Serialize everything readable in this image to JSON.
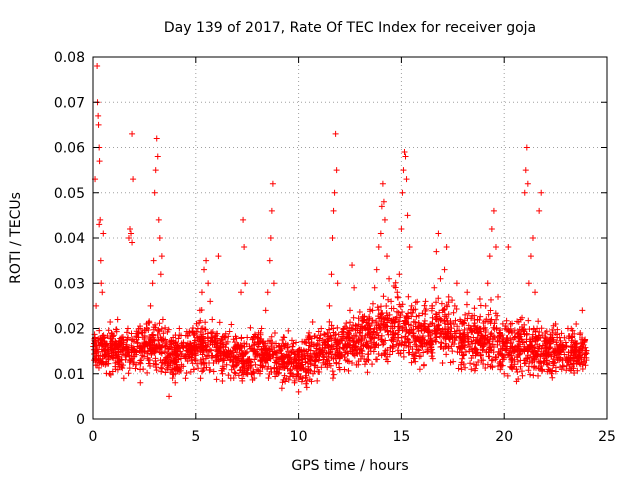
{
  "chart_data": {
    "type": "scatter",
    "title": "Day 139 of 2017, Rate Of TEC Index for receiver goja",
    "xlabel": "GPS time / hours",
    "ylabel": "ROTI / TECUs",
    "xlim": [
      0,
      25
    ],
    "ylim": [
      0,
      0.08
    ],
    "xticks": [
      0,
      5,
      10,
      15,
      20,
      25
    ],
    "yticks": [
      0,
      0.01,
      0.02,
      0.03,
      0.04,
      0.05,
      0.06,
      0.07,
      0.08
    ],
    "xtick_labels": [
      "0",
      "5",
      "10",
      "15",
      "20",
      "25"
    ],
    "ytick_labels": [
      "0",
      "0.01",
      "0.02",
      "0.03",
      "0.04",
      "0.05",
      "0.06",
      "0.07",
      "0.08"
    ],
    "grid": true,
    "marker": "plus",
    "color": "#ff0000",
    "series": [
      {
        "points": [
          [
            0.05,
            0.013
          ],
          [
            0.1,
            0.018
          ],
          [
            0.15,
            0.025
          ],
          [
            0.2,
            0.078
          ],
          [
            0.22,
            0.07
          ],
          [
            0.25,
            0.067
          ],
          [
            0.27,
            0.065
          ],
          [
            0.3,
            0.06
          ],
          [
            0.32,
            0.057
          ],
          [
            0.35,
            0.044
          ],
          [
            0.38,
            0.035
          ],
          [
            0.4,
            0.03
          ],
          [
            0.45,
            0.028
          ],
          [
            0.5,
            0.016
          ],
          [
            0.6,
            0.012
          ],
          [
            0.7,
            0.015
          ],
          [
            0.8,
            0.01
          ],
          [
            0.9,
            0.019
          ],
          [
            0.1,
            0.053
          ],
          [
            0.3,
            0.043
          ],
          [
            0.5,
            0.041
          ],
          [
            1.0,
            0.014
          ],
          [
            1.1,
            0.011
          ],
          [
            1.2,
            0.022
          ],
          [
            1.3,
            0.013
          ],
          [
            1.4,
            0.018
          ],
          [
            1.5,
            0.009
          ],
          [
            1.6,
            0.016
          ],
          [
            1.7,
            0.02
          ],
          [
            1.75,
            0.04
          ],
          [
            1.8,
            0.042
          ],
          [
            1.85,
            0.041
          ],
          [
            1.9,
            0.039
          ],
          [
            1.9,
            0.063
          ],
          [
            1.95,
            0.053
          ],
          [
            2.0,
            0.015
          ],
          [
            2.1,
            0.012
          ],
          [
            2.2,
            0.019
          ],
          [
            2.3,
            0.008
          ],
          [
            2.4,
            0.014
          ],
          [
            2.5,
            0.017
          ],
          [
            2.6,
            0.021
          ],
          [
            2.7,
            0.013
          ],
          [
            2.8,
            0.025
          ],
          [
            2.9,
            0.03
          ],
          [
            2.95,
            0.035
          ],
          [
            3.0,
            0.05
          ],
          [
            3.05,
            0.055
          ],
          [
            3.1,
            0.062
          ],
          [
            3.15,
            0.058
          ],
          [
            3.2,
            0.044
          ],
          [
            3.25,
            0.04
          ],
          [
            3.3,
            0.032
          ],
          [
            3.35,
            0.036
          ],
          [
            3.4,
            0.022
          ],
          [
            3.5,
            0.015
          ],
          [
            3.6,
            0.011
          ],
          [
            3.7,
            0.005
          ],
          [
            3.8,
            0.013
          ],
          [
            3.9,
            0.018
          ],
          [
            4.0,
            0.01
          ],
          [
            4.1,
            0.014
          ],
          [
            4.2,
            0.02
          ],
          [
            4.3,
            0.012
          ],
          [
            4.4,
            0.016
          ],
          [
            4.5,
            0.009
          ],
          [
            4.6,
            0.015
          ],
          [
            4.7,
            0.019
          ],
          [
            4.8,
            0.013
          ],
          [
            4.9,
            0.011
          ],
          [
            5.0,
            0.016
          ],
          [
            5.1,
            0.02
          ],
          [
            5.2,
            0.024
          ],
          [
            5.3,
            0.028
          ],
          [
            5.4,
            0.033
          ],
          [
            5.5,
            0.035
          ],
          [
            5.6,
            0.03
          ],
          [
            5.7,
            0.026
          ],
          [
            5.8,
            0.022
          ],
          [
            5.9,
            0.017
          ],
          [
            6.0,
            0.013
          ],
          [
            6.1,
            0.036
          ],
          [
            6.2,
            0.014
          ],
          [
            6.3,
            0.01
          ],
          [
            6.4,
            0.018
          ],
          [
            6.5,
            0.012
          ],
          [
            6.6,
            0.015
          ],
          [
            6.7,
            0.009
          ],
          [
            6.8,
            0.013
          ],
          [
            6.9,
            0.017
          ],
          [
            7.0,
            0.012
          ],
          [
            7.1,
            0.016
          ],
          [
            7.2,
            0.028
          ],
          [
            7.3,
            0.044
          ],
          [
            7.35,
            0.038
          ],
          [
            7.4,
            0.03
          ],
          [
            7.5,
            0.018
          ],
          [
            7.6,
            0.013
          ],
          [
            7.7,
            0.01
          ],
          [
            7.8,
            0.015
          ],
          [
            7.9,
            0.012
          ],
          [
            8.0,
            0.018
          ],
          [
            8.1,
            0.014
          ],
          [
            8.2,
            0.02
          ],
          [
            8.3,
            0.016
          ],
          [
            8.4,
            0.024
          ],
          [
            8.5,
            0.028
          ],
          [
            8.6,
            0.035
          ],
          [
            8.65,
            0.04
          ],
          [
            8.7,
            0.046
          ],
          [
            8.75,
            0.052
          ],
          [
            8.8,
            0.03
          ],
          [
            8.9,
            0.013
          ],
          [
            9.0,
            0.01
          ],
          [
            9.1,
            0.015
          ],
          [
            9.2,
            0.012
          ],
          [
            9.3,
            0.018
          ],
          [
            9.4,
            0.009
          ],
          [
            9.5,
            0.014
          ],
          [
            9.6,
            0.011
          ],
          [
            9.7,
            0.016
          ],
          [
            9.8,
            0.008
          ],
          [
            9.9,
            0.013
          ],
          [
            10.0,
            0.006
          ],
          [
            10.1,
            0.012
          ],
          [
            10.2,
            0.009
          ],
          [
            10.3,
            0.014
          ],
          [
            10.4,
            0.007
          ],
          [
            10.5,
            0.011
          ],
          [
            10.6,
            0.016
          ],
          [
            10.7,
            0.01
          ],
          [
            10.8,
            0.013
          ],
          [
            10.9,
            0.018
          ],
          [
            11.0,
            0.015
          ],
          [
            11.1,
            0.02
          ],
          [
            11.2,
            0.017
          ],
          [
            11.3,
            0.012
          ],
          [
            11.4,
            0.019
          ],
          [
            11.5,
            0.025
          ],
          [
            11.6,
            0.032
          ],
          [
            11.65,
            0.04
          ],
          [
            11.7,
            0.046
          ],
          [
            11.75,
            0.05
          ],
          [
            11.8,
            0.063
          ],
          [
            11.85,
            0.055
          ],
          [
            11.9,
            0.03
          ],
          [
            12.0,
            0.017
          ],
          [
            12.1,
            0.014
          ],
          [
            12.2,
            0.02
          ],
          [
            12.3,
            0.013
          ],
          [
            12.4,
            0.018
          ],
          [
            12.5,
            0.024
          ],
          [
            12.6,
            0.034
          ],
          [
            12.7,
            0.029
          ],
          [
            12.8,
            0.016
          ],
          [
            12.9,
            0.012
          ],
          [
            13.0,
            0.019
          ],
          [
            13.1,
            0.015
          ],
          [
            13.2,
            0.022
          ],
          [
            13.3,
            0.017
          ],
          [
            13.4,
            0.013
          ],
          [
            13.5,
            0.02
          ],
          [
            13.6,
            0.024
          ],
          [
            13.7,
            0.029
          ],
          [
            13.8,
            0.033
          ],
          [
            13.9,
            0.038
          ],
          [
            14.0,
            0.041
          ],
          [
            14.05,
            0.047
          ],
          [
            14.1,
            0.052
          ],
          [
            14.15,
            0.048
          ],
          [
            14.2,
            0.044
          ],
          [
            14.3,
            0.036
          ],
          [
            14.4,
            0.031
          ],
          [
            14.5,
            0.026
          ],
          [
            14.6,
            0.022
          ],
          [
            14.7,
            0.019
          ],
          [
            14.8,
            0.028
          ],
          [
            14.9,
            0.032
          ],
          [
            15.0,
            0.042
          ],
          [
            15.05,
            0.05
          ],
          [
            15.1,
            0.055
          ],
          [
            15.15,
            0.059
          ],
          [
            15.2,
            0.058
          ],
          [
            15.25,
            0.053
          ],
          [
            15.3,
            0.045
          ],
          [
            15.4,
            0.038
          ],
          [
            15.5,
            0.025
          ],
          [
            15.6,
            0.019
          ],
          [
            15.7,
            0.014
          ],
          [
            15.8,
            0.018
          ],
          [
            15.9,
            0.011
          ],
          [
            16.0,
            0.016
          ],
          [
            16.1,
            0.012
          ],
          [
            16.2,
            0.02
          ],
          [
            16.3,
            0.015
          ],
          [
            16.4,
            0.021
          ],
          [
            16.5,
            0.025
          ],
          [
            16.6,
            0.029
          ],
          [
            16.7,
            0.037
          ],
          [
            16.8,
            0.041
          ],
          [
            16.9,
            0.031
          ],
          [
            17.0,
            0.024
          ],
          [
            17.1,
            0.033
          ],
          [
            17.2,
            0.038
          ],
          [
            17.3,
            0.027
          ],
          [
            17.4,
            0.021
          ],
          [
            17.5,
            0.018
          ],
          [
            17.6,
            0.025
          ],
          [
            17.7,
            0.03
          ],
          [
            17.8,
            0.016
          ],
          [
            17.9,
            0.012
          ],
          [
            18.0,
            0.019
          ],
          [
            18.1,
            0.023
          ],
          [
            18.2,
            0.028
          ],
          [
            18.3,
            0.015
          ],
          [
            18.4,
            0.011
          ],
          [
            18.5,
            0.018
          ],
          [
            18.6,
            0.014
          ],
          [
            18.7,
            0.022
          ],
          [
            18.8,
            0.017
          ],
          [
            18.9,
            0.013
          ],
          [
            19.0,
            0.02
          ],
          [
            19.1,
            0.025
          ],
          [
            19.2,
            0.03
          ],
          [
            19.3,
            0.036
          ],
          [
            19.4,
            0.042
          ],
          [
            19.5,
            0.046
          ],
          [
            19.6,
            0.038
          ],
          [
            19.7,
            0.027
          ],
          [
            19.8,
            0.019
          ],
          [
            19.9,
            0.014
          ],
          [
            20.0,
            0.01
          ],
          [
            20.1,
            0.017
          ],
          [
            20.2,
            0.038
          ],
          [
            20.3,
            0.021
          ],
          [
            20.4,
            0.013
          ],
          [
            20.5,
            0.018
          ],
          [
            20.6,
            0.011
          ],
          [
            20.7,
            0.016
          ],
          [
            20.8,
            0.022
          ],
          [
            20.9,
            0.015
          ],
          [
            21.0,
            0.05
          ],
          [
            21.05,
            0.055
          ],
          [
            21.1,
            0.06
          ],
          [
            21.15,
            0.052
          ],
          [
            21.2,
            0.03
          ],
          [
            21.3,
            0.036
          ],
          [
            21.4,
            0.04
          ],
          [
            21.5,
            0.028
          ],
          [
            21.6,
            0.02
          ],
          [
            21.7,
            0.046
          ],
          [
            21.8,
            0.05
          ],
          [
            21.9,
            0.014
          ],
          [
            22.0,
            0.019
          ],
          [
            22.1,
            0.012
          ],
          [
            22.2,
            0.017
          ],
          [
            22.3,
            0.01
          ],
          [
            22.4,
            0.015
          ],
          [
            22.5,
            0.021
          ],
          [
            22.6,
            0.013
          ],
          [
            22.7,
            0.018
          ],
          [
            22.8,
            0.011
          ],
          [
            23.0,
            0.016
          ],
          [
            23.1,
            0.02
          ],
          [
            23.2,
            0.012
          ],
          [
            23.3,
            0.018
          ],
          [
            23.4,
            0.014
          ],
          [
            23.5,
            0.021
          ],
          [
            23.6,
            0.015
          ],
          [
            23.7,
            0.019
          ],
          [
            23.8,
            0.024
          ],
          [
            23.9,
            0.017
          ],
          [
            24.0,
            0.013
          ]
        ],
        "band": [
          [
            0,
            0.01,
            0.02
          ],
          [
            1,
            0.009,
            0.021
          ],
          [
            2,
            0.009,
            0.022
          ],
          [
            3,
            0.008,
            0.025
          ],
          [
            4,
            0.008,
            0.019
          ],
          [
            5,
            0.009,
            0.024
          ],
          [
            6,
            0.008,
            0.022
          ],
          [
            7,
            0.008,
            0.02
          ],
          [
            8,
            0.008,
            0.021
          ],
          [
            9,
            0.007,
            0.019
          ],
          [
            10,
            0.006,
            0.019
          ],
          [
            11,
            0.008,
            0.022
          ],
          [
            12,
            0.009,
            0.023
          ],
          [
            13,
            0.01,
            0.025
          ],
          [
            14,
            0.01,
            0.03
          ],
          [
            15,
            0.01,
            0.03
          ],
          [
            16,
            0.01,
            0.028
          ],
          [
            17,
            0.01,
            0.029
          ],
          [
            18,
            0.009,
            0.026
          ],
          [
            19,
            0.008,
            0.027
          ],
          [
            20,
            0.008,
            0.024
          ],
          [
            21,
            0.008,
            0.025
          ],
          [
            22,
            0.008,
            0.022
          ],
          [
            23,
            0.009,
            0.02
          ],
          [
            24,
            0.01,
            0.02
          ]
        ]
      }
    ]
  }
}
